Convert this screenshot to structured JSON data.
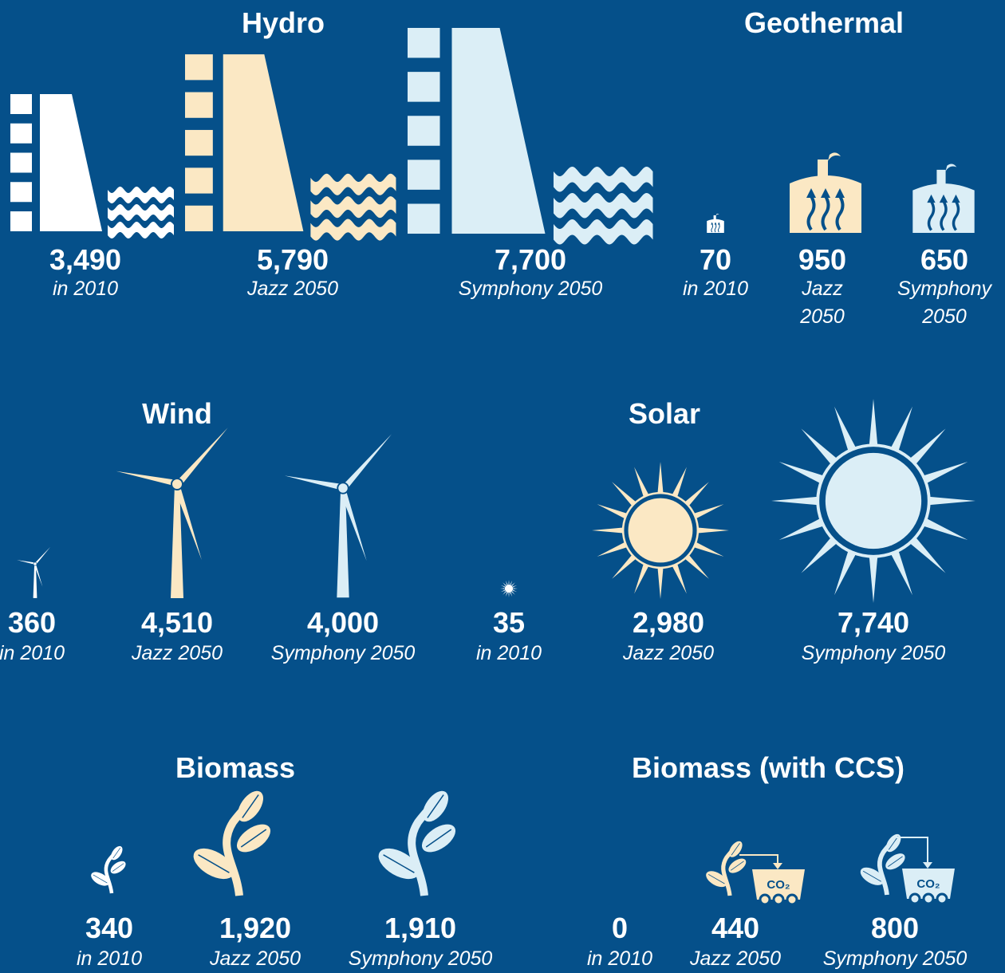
{
  "sections": [
    {
      "title": "Hydro",
      "items": [
        {
          "value": "3,490",
          "caption": "in 2010"
        },
        {
          "value": "5,790",
          "caption": "Jazz 2050"
        },
        {
          "value": "7,700",
          "caption": "Symphony 2050"
        }
      ]
    },
    {
      "title": "Geothermal",
      "items": [
        {
          "value": "70",
          "caption": "in 2010"
        },
        {
          "value": "950",
          "caption": "Jazz 2050"
        },
        {
          "value": "650",
          "caption": "Symphony 2050"
        }
      ]
    },
    {
      "title": "Wind",
      "items": [
        {
          "value": "360",
          "caption": "in 2010"
        },
        {
          "value": "4,510",
          "caption": "Jazz 2050"
        },
        {
          "value": "4,000",
          "caption": "Symphony 2050"
        }
      ]
    },
    {
      "title": "Solar",
      "items": [
        {
          "value": "35",
          "caption": "in 2010"
        },
        {
          "value": "2,980",
          "caption": "Jazz 2050"
        },
        {
          "value": "7,740",
          "caption": "Symphony 2050"
        }
      ]
    },
    {
      "title": "Biomass",
      "items": [
        {
          "value": "340",
          "caption": "in 2010"
        },
        {
          "value": "1,920",
          "caption": "Jazz 2050"
        },
        {
          "value": "1,910",
          "caption": "Symphony 2050"
        }
      ]
    },
    {
      "title": "Biomass (with CCS)",
      "items": [
        {
          "value": "0",
          "caption": "in 2010"
        },
        {
          "value": "440",
          "caption": "Jazz 2050"
        },
        {
          "value": "800",
          "caption": "Symphony 2050"
        }
      ]
    }
  ],
  "cart_label": "CO₂"
}
